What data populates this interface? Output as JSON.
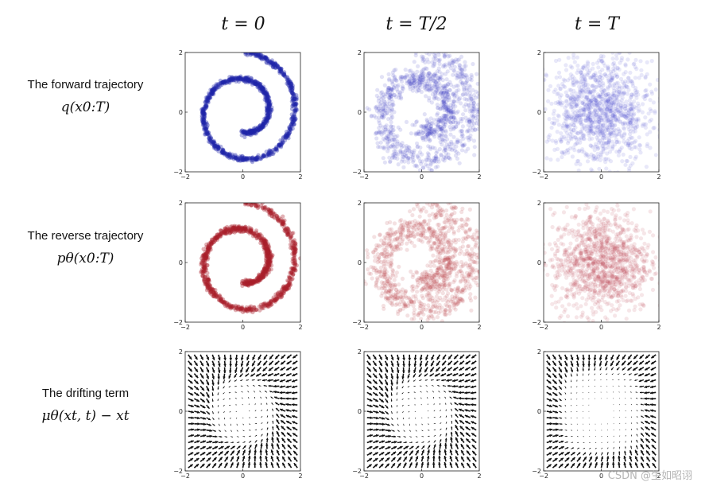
{
  "column_titles": [
    "t = 0",
    "t = T/2",
    "t = T"
  ],
  "row_labels": [
    {
      "title": "The forward trajectory",
      "formula": "q(x0:T)"
    },
    {
      "title": "The reverse trajectory",
      "formula": "pθ(x0:T)"
    },
    {
      "title": "The drifting term",
      "formula": "μθ(xt, t) − xt"
    }
  ],
  "watermark": "CSDN @生如昭诩",
  "chart_data": [
    {
      "type": "scatter",
      "row": 0,
      "col": 0,
      "title": "t = 0",
      "series_name": "forward",
      "color": "#1f24a8",
      "distribution": "swiss-roll spiral",
      "noise_std": 0.04,
      "point_alpha": 0.35,
      "xlim": [
        -2,
        2
      ],
      "ylim": [
        -2,
        2
      ],
      "xticks": [
        -2,
        0,
        2
      ],
      "yticks": [
        -2,
        0,
        2
      ]
    },
    {
      "type": "scatter",
      "row": 0,
      "col": 1,
      "title": "t = T/2",
      "series_name": "forward",
      "color": "#3a3fc0",
      "distribution": "swiss-roll spiral",
      "noise_std": 0.22,
      "point_alpha": 0.15,
      "xlim": [
        -2,
        2
      ],
      "ylim": [
        -2,
        2
      ],
      "xticks": [
        -2,
        0,
        2
      ],
      "yticks": [
        -2,
        0,
        2
      ]
    },
    {
      "type": "scatter",
      "row": 0,
      "col": 2,
      "title": "t = T",
      "series_name": "forward",
      "color": "#4a4fd0",
      "distribution": "uniform-gaussian noise",
      "noise_std": 0.9,
      "point_alpha": 0.13,
      "xlim": [
        -2,
        2
      ],
      "ylim": [
        -2,
        2
      ],
      "xticks": [
        -2,
        0,
        2
      ],
      "yticks": [
        -2,
        0,
        2
      ]
    },
    {
      "type": "scatter",
      "row": 1,
      "col": 0,
      "title": "t = 0",
      "series_name": "reverse",
      "color": "#a8202a",
      "distribution": "swiss-roll spiral",
      "noise_std": 0.05,
      "point_alpha": 0.35,
      "xlim": [
        -2,
        2
      ],
      "ylim": [
        -2,
        2
      ],
      "xticks": [
        -2,
        0,
        2
      ],
      "yticks": [
        -2,
        0,
        2
      ]
    },
    {
      "type": "scatter",
      "row": 1,
      "col": 1,
      "title": "t = T/2",
      "series_name": "reverse",
      "color": "#b5343c",
      "distribution": "swiss-roll spiral",
      "noise_std": 0.24,
      "point_alpha": 0.15,
      "xlim": [
        -2,
        2
      ],
      "ylim": [
        -2,
        2
      ],
      "xticks": [
        -2,
        0,
        2
      ],
      "yticks": [
        -2,
        0,
        2
      ]
    },
    {
      "type": "scatter",
      "row": 1,
      "col": 2,
      "title": "t = T",
      "series_name": "reverse",
      "color": "#b8404a",
      "distribution": "uniform-gaussian noise",
      "noise_std": 0.85,
      "point_alpha": 0.13,
      "xlim": [
        -2,
        2
      ],
      "ylim": [
        -2,
        2
      ],
      "xticks": [
        -2,
        0,
        2
      ],
      "yticks": [
        -2,
        0,
        2
      ]
    },
    {
      "type": "quiver",
      "row": 2,
      "col": 0,
      "title": "t = 0",
      "grid_n": 19,
      "strength": 1.0,
      "xlim": [
        -2,
        2
      ],
      "ylim": [
        -2,
        2
      ],
      "xticks": [
        -2,
        0,
        2
      ],
      "yticks": [
        -2,
        0,
        2
      ]
    },
    {
      "type": "quiver",
      "row": 2,
      "col": 1,
      "title": "t = T/2",
      "grid_n": 19,
      "strength": 0.95,
      "xlim": [
        -2,
        2
      ],
      "ylim": [
        -2,
        2
      ],
      "xticks": [
        -2,
        0,
        2
      ],
      "yticks": [
        -2,
        0,
        2
      ]
    },
    {
      "type": "quiver",
      "row": 2,
      "col": 2,
      "title": "t = T",
      "grid_n": 19,
      "strength": 0.35,
      "xlim": [
        -2,
        2
      ],
      "ylim": [
        -2,
        2
      ],
      "xticks": [
        -2,
        0,
        2
      ],
      "yticks": [
        -2,
        0,
        2
      ]
    }
  ]
}
